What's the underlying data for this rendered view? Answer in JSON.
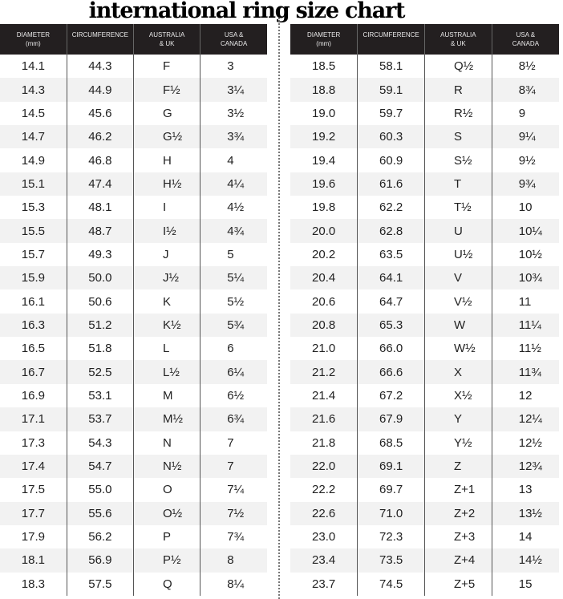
{
  "title": "international ring size chart",
  "headers": [
    "DIAMETER (mm)",
    "CIRCUMFERENCE",
    "AUSTRALIA & UK",
    "USA & CANADA"
  ],
  "header_lines": [
    [
      "DIAMETER",
      "(mm)"
    ],
    [
      "CIRCUMFERENCE",
      ""
    ],
    [
      "AUSTRALIA",
      "& UK"
    ],
    [
      "USA &",
      "CANADA"
    ]
  ],
  "colors": {
    "header_bg": "#231f20",
    "row_shade": "#f2f2f2"
  },
  "left_rows": [
    [
      "14.1",
      "44.3",
      "F",
      "3"
    ],
    [
      "14.3",
      "44.9",
      "F½",
      "3¼"
    ],
    [
      "14.5",
      "45.6",
      "G",
      "3½"
    ],
    [
      "14.7",
      "46.2",
      "G½",
      "3¾"
    ],
    [
      "14.9",
      "46.8",
      "H",
      "4"
    ],
    [
      "15.1",
      "47.4",
      "H½",
      "4¼"
    ],
    [
      "15.3",
      "48.1",
      "I",
      "4½"
    ],
    [
      "15.5",
      "48.7",
      "I½",
      "4¾"
    ],
    [
      "15.7",
      "49.3",
      "J",
      "5"
    ],
    [
      "15.9",
      "50.0",
      "J½",
      "5¼"
    ],
    [
      "16.1",
      "50.6",
      "K",
      "5½"
    ],
    [
      "16.3",
      "51.2",
      "K½",
      "5¾"
    ],
    [
      "16.5",
      "51.8",
      "L",
      "6"
    ],
    [
      "16.7",
      "52.5",
      "L½",
      "6¼"
    ],
    [
      "16.9",
      "53.1",
      "M",
      "6½"
    ],
    [
      "17.1",
      "53.7",
      "M½",
      "6¾"
    ],
    [
      "17.3",
      "54.3",
      "N",
      "7"
    ],
    [
      "17.4",
      "54.7",
      "N½",
      "7"
    ],
    [
      "17.5",
      "55.0",
      "O",
      "7¼"
    ],
    [
      "17.7",
      "55.6",
      "O½",
      "7½"
    ],
    [
      "17.9",
      "56.2",
      "P",
      "7¾"
    ],
    [
      "18.1",
      "56.9",
      "P½",
      "8"
    ],
    [
      "18.3",
      "57.5",
      "Q",
      "8¼"
    ]
  ],
  "right_rows": [
    [
      "18.5",
      "58.1",
      "Q½",
      "8½"
    ],
    [
      "18.8",
      "59.1",
      "R",
      "8¾"
    ],
    [
      "19.0",
      "59.7",
      "R½",
      "9"
    ],
    [
      "19.2",
      "60.3",
      "S",
      "9¼"
    ],
    [
      "19.4",
      "60.9",
      "S½",
      "9½"
    ],
    [
      "19.6",
      "61.6",
      "T",
      "9¾"
    ],
    [
      "19.8",
      "62.2",
      "T½",
      "10"
    ],
    [
      "20.0",
      "62.8",
      "U",
      "10¼"
    ],
    [
      "20.2",
      "63.5",
      "U½",
      "10½"
    ],
    [
      "20.4",
      "64.1",
      "V",
      "10¾"
    ],
    [
      "20.6",
      "64.7",
      "V½",
      "11"
    ],
    [
      "20.8",
      "65.3",
      "W",
      "11¼"
    ],
    [
      "21.0",
      "66.0",
      "W½",
      "11½"
    ],
    [
      "21.2",
      "66.6",
      "X",
      "11¾"
    ],
    [
      "21.4",
      "67.2",
      "X½",
      "12"
    ],
    [
      "21.6",
      "67.9",
      "Y",
      "12¼"
    ],
    [
      "21.8",
      "68.5",
      "Y½",
      "12½"
    ],
    [
      "22.0",
      "69.1",
      "Z",
      "12¾"
    ],
    [
      "22.2",
      "69.7",
      "Z+1",
      "13"
    ],
    [
      "22.6",
      "71.0",
      "Z+2",
      "13½"
    ],
    [
      "23.0",
      "72.3",
      "Z+3",
      "14"
    ],
    [
      "23.4",
      "73.5",
      "Z+4",
      "14½"
    ],
    [
      "23.7",
      "74.5",
      "Z+5",
      "15"
    ]
  ]
}
